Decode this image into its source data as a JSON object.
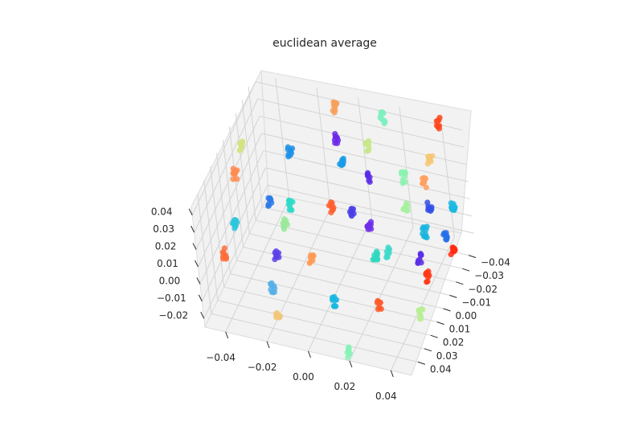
{
  "chart_data": {
    "type": "scatter",
    "title": "euclidean average",
    "xlabel": "",
    "ylabel": "",
    "zlabel": "",
    "projection": "3d",
    "grid": true,
    "xlim": [
      -0.05,
      0.05
    ],
    "ylim": [
      -0.05,
      0.05
    ],
    "zlim": [
      -0.025,
      0.045
    ],
    "x_ticks": [
      "−0.04",
      "−0.02",
      "0.00",
      "0.02",
      "0.04"
    ],
    "y_ticks": [
      "−0.04",
      "−0.03",
      "−0.02",
      "−0.01",
      "0.00",
      "0.01",
      "0.02",
      "0.03",
      "0.04"
    ],
    "z_ticks": [
      "−0.02",
      "−0.01",
      "0.00",
      "0.01",
      "0.02",
      "0.03",
      "0.04"
    ],
    "colormap": "rainbow",
    "clusters": [
      {
        "x": -0.045,
        "y": -0.01,
        "z": 0.035,
        "color": "#d4e383"
      },
      {
        "x": -0.048,
        "y": -0.005,
        "z": 0.022,
        "color": "#ff8c50"
      },
      {
        "x": -0.03,
        "y": 0.0,
        "z": 0.015,
        "color": "#2f7ae8"
      },
      {
        "x": -0.045,
        "y": 0.01,
        "z": 0.005,
        "color": "#2cc6db"
      },
      {
        "x": -0.048,
        "y": 0.02,
        "z": -0.005,
        "color": "#ff6e3c"
      },
      {
        "x": -0.025,
        "y": -0.02,
        "z": 0.03,
        "color": "#1e90e6"
      },
      {
        "x": -0.02,
        "y": 0.0,
        "z": 0.015,
        "color": "#2ed9c8"
      },
      {
        "x": -0.01,
        "y": -0.045,
        "z": 0.04,
        "color": "#f7a05c"
      },
      {
        "x": -0.005,
        "y": -0.03,
        "z": 0.035,
        "color": "#6b2ae8"
      },
      {
        "x": 0.0,
        "y": -0.02,
        "z": 0.032,
        "color": "#1a9be8"
      },
      {
        "x": 0.0,
        "y": 0.0,
        "z": 0.02,
        "color": "#ff6030"
      },
      {
        "x": -0.02,
        "y": 0.01,
        "z": 0.012,
        "color": "#9ae99a"
      },
      {
        "x": -0.02,
        "y": 0.025,
        "z": 0.005,
        "color": "#5b42e8"
      },
      {
        "x": -0.005,
        "y": 0.02,
        "z": 0.003,
        "color": "#ff9a55"
      },
      {
        "x": -0.02,
        "y": 0.035,
        "z": -0.005,
        "color": "#57b0e6"
      },
      {
        "x": -0.015,
        "y": 0.045,
        "z": -0.012,
        "color": "#f2c77a"
      },
      {
        "x": 0.01,
        "y": 0.035,
        "z": -0.005,
        "color": "#16b7e0"
      },
      {
        "x": 0.02,
        "y": 0.05,
        "z": -0.02,
        "color": "#88f2b8"
      },
      {
        "x": 0.015,
        "y": -0.04,
        "z": 0.045,
        "color": "#7df0c0"
      },
      {
        "x": 0.01,
        "y": -0.03,
        "z": 0.035,
        "color": "#c5e88a"
      },
      {
        "x": 0.015,
        "y": -0.015,
        "z": 0.03,
        "color": "#5a2de6"
      },
      {
        "x": 0.01,
        "y": 0.0,
        "z": 0.02,
        "color": "#4a3fe6"
      },
      {
        "x": 0.02,
        "y": 0.005,
        "z": 0.018,
        "color": "#6e2ee8"
      },
      {
        "x": 0.025,
        "y": 0.015,
        "z": 0.01,
        "color": "#2fd8c0"
      },
      {
        "x": 0.03,
        "y": 0.01,
        "z": 0.01,
        "color": "#3fd9cb"
      },
      {
        "x": 0.03,
        "y": -0.02,
        "z": 0.03,
        "color": "#8cf2b0"
      },
      {
        "x": 0.035,
        "y": -0.005,
        "z": 0.025,
        "color": "#a7f0a0"
      },
      {
        "x": 0.03,
        "y": 0.03,
        "z": -0.005,
        "color": "#ff5a2a"
      },
      {
        "x": 0.04,
        "y": -0.045,
        "z": 0.045,
        "color": "#ff4a20"
      },
      {
        "x": 0.04,
        "y": -0.03,
        "z": 0.035,
        "color": "#f6c774"
      },
      {
        "x": 0.04,
        "y": -0.02,
        "z": 0.03,
        "color": "#ffa060"
      },
      {
        "x": 0.045,
        "y": -0.01,
        "z": 0.025,
        "color": "#3250e6"
      },
      {
        "x": 0.045,
        "y": 0.0,
        "z": 0.018,
        "color": "#18b4de"
      },
      {
        "x": 0.045,
        "y": 0.01,
        "z": 0.01,
        "color": "#5a2fe6"
      },
      {
        "x": 0.05,
        "y": 0.015,
        "z": 0.005,
        "color": "#ff3818"
      },
      {
        "x": 0.05,
        "y": 0.03,
        "z": -0.005,
        "color": "#b8ee94"
      },
      {
        "x": 0.055,
        "y": -0.015,
        "z": 0.025,
        "color": "#1ab8e2"
      },
      {
        "x": 0.055,
        "y": 0.0,
        "z": 0.018,
        "color": "#2670e8"
      },
      {
        "x": 0.06,
        "y": 0.005,
        "z": 0.015,
        "color": "#ff2a10"
      }
    ]
  }
}
